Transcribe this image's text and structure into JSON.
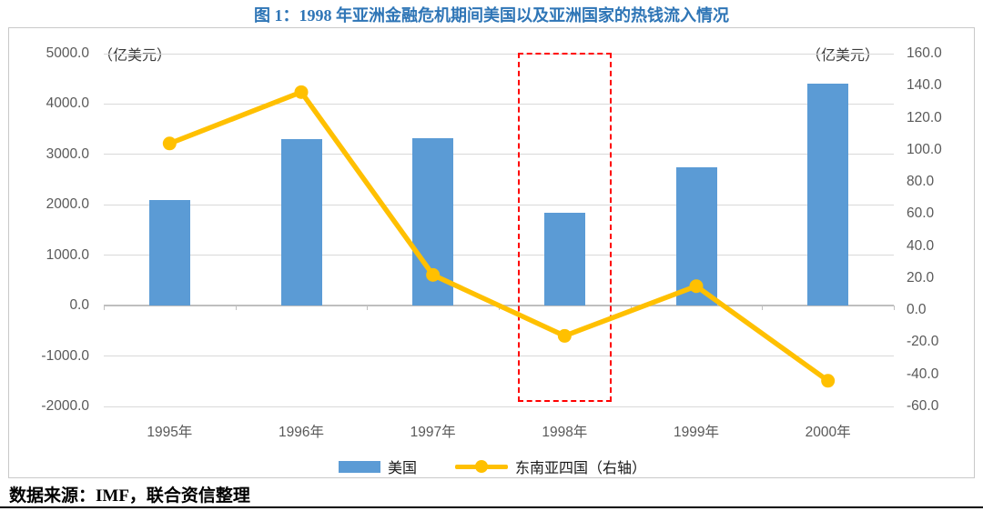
{
  "title": "图 1：1998 年亚洲金融危机期间美国以及亚洲国家的热钱流入情况",
  "source_note": "数据来源：IMF，联合资信整理",
  "colors": {
    "bar": "#5B9BD5",
    "line": "#FFC000",
    "highlight": "#FF0000",
    "title": "#2E75B6",
    "grid": "#D9D9D9",
    "axis_text": "#595959"
  },
  "chart_data": {
    "type": "bar",
    "subtype": "combo-bar-line-dual-axis",
    "categories": [
      "1995年",
      "1996年",
      "1997年",
      "1998年",
      "1999年",
      "2000年"
    ],
    "series": [
      {
        "name": "美国",
        "type": "bar",
        "axis": "left",
        "color": "#5B9BD5",
        "values": [
          2100,
          3310,
          3320,
          1850,
          2750,
          4400
        ]
      },
      {
        "name": "东南亚四国（右轴）",
        "type": "line",
        "axis": "right",
        "color": "#FFC000",
        "values": [
          104,
          136,
          22,
          -16,
          15,
          -44
        ]
      }
    ],
    "left_axis": {
      "title": "（亿美元）",
      "min": -2000,
      "max": 5000,
      "step": 1000,
      "tick_labels": [
        "5000.0",
        "4000.0",
        "3000.0",
        "2000.0",
        "1000.0",
        "0.0",
        "-1000.0",
        "-2000.0"
      ]
    },
    "right_axis": {
      "title": "（亿美元）",
      "min": -60,
      "max": 160,
      "step": 20,
      "tick_labels": [
        "160.0",
        "140.0",
        "120.0",
        "100.0",
        "80.0",
        "60.0",
        "40.0",
        "20.0",
        "0.0",
        "-20.0",
        "-40.0",
        "-60.0"
      ]
    },
    "highlight": {
      "category": "1998年",
      "category_index": 3,
      "style": "red-dashed-box"
    },
    "legend": [
      {
        "label": "美国",
        "swatch": "bar"
      },
      {
        "label": "东南亚四国（右轴）",
        "swatch": "line-dot"
      }
    ],
    "grid": true,
    "legend_position": "bottom"
  }
}
